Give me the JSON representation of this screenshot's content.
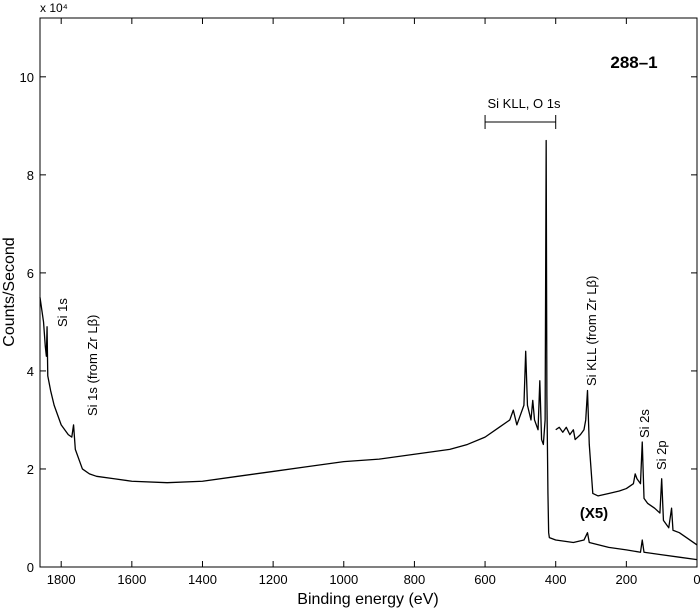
{
  "chart_data": {
    "type": "line",
    "title": "288–1",
    "x_label": "Binding energy (eV)",
    "y_label": "Counts/Second",
    "y_multiplier": "x 10⁴",
    "xlim": [
      1860,
      0
    ],
    "ylim": [
      0,
      11.2
    ],
    "xticks": [
      1800,
      1600,
      1400,
      1200,
      1000,
      800,
      600,
      400,
      200,
      0
    ],
    "yticks": [
      0,
      2,
      4,
      6,
      8,
      10
    ],
    "x_reversed": true,
    "grid": false,
    "series": [
      {
        "color": "#000000",
        "x": [
          1860,
          1850,
          1845,
          1842,
          1840,
          1838,
          1830,
          1820,
          1800,
          1780,
          1770,
          1765,
          1760,
          1740,
          1720,
          1700,
          1650,
          1600,
          1500,
          1400,
          1300,
          1200,
          1100,
          1000,
          900,
          800,
          700,
          650,
          600,
          560,
          530,
          520,
          510,
          500,
          490,
          485,
          480,
          470,
          465,
          460,
          450,
          445,
          440,
          435,
          430,
          427,
          425,
          422,
          420,
          418,
          400,
          350,
          320,
          310,
          305,
          250,
          200,
          160,
          155,
          150,
          100,
          50,
          0
        ],
        "values": [
          5.5,
          5.0,
          4.5,
          4.3,
          4.9,
          3.9,
          3.6,
          3.3,
          2.9,
          2.7,
          2.65,
          2.9,
          2.4,
          2.0,
          1.9,
          1.85,
          1.8,
          1.75,
          1.72,
          1.75,
          1.85,
          1.95,
          2.05,
          2.15,
          2.2,
          2.3,
          2.4,
          2.5,
          2.65,
          2.85,
          3.0,
          3.2,
          2.9,
          3.1,
          3.3,
          4.4,
          3.3,
          3.0,
          3.4,
          3.0,
          2.8,
          3.8,
          2.6,
          2.5,
          3.0,
          8.7,
          3.5,
          1.5,
          0.7,
          0.6,
          0.55,
          0.5,
          0.55,
          0.7,
          0.5,
          0.4,
          0.35,
          0.3,
          0.55,
          0.3,
          0.25,
          0.2,
          0.15
        ]
      },
      {
        "color": "#000000",
        "x": [
          400,
          390,
          380,
          370,
          360,
          350,
          345,
          330,
          320,
          315,
          310,
          305,
          300,
          295,
          280,
          250,
          220,
          200,
          180,
          175,
          170,
          160,
          155,
          150,
          140,
          120,
          105,
          100,
          95,
          80,
          72,
          68,
          50,
          30,
          0
        ],
        "values": [
          2.8,
          2.85,
          2.75,
          2.85,
          2.7,
          2.8,
          2.6,
          2.7,
          2.8,
          3.0,
          3.6,
          2.5,
          2.0,
          1.5,
          1.45,
          1.5,
          1.55,
          1.6,
          1.7,
          1.9,
          1.8,
          1.7,
          2.55,
          1.4,
          1.3,
          1.2,
          1.1,
          1.8,
          0.95,
          0.8,
          1.2,
          0.75,
          0.7,
          0.6,
          0.45
        ]
      }
    ],
    "annotations": [
      "Si 1s",
      "Si 1s (from Zr Lβ)",
      "Si KLL (from Zr Lβ)",
      "Si 2s",
      "Si 2p",
      "(X5)",
      "Si KLL, O 1s"
    ],
    "annotation_range": [
      600,
      400
    ]
  }
}
